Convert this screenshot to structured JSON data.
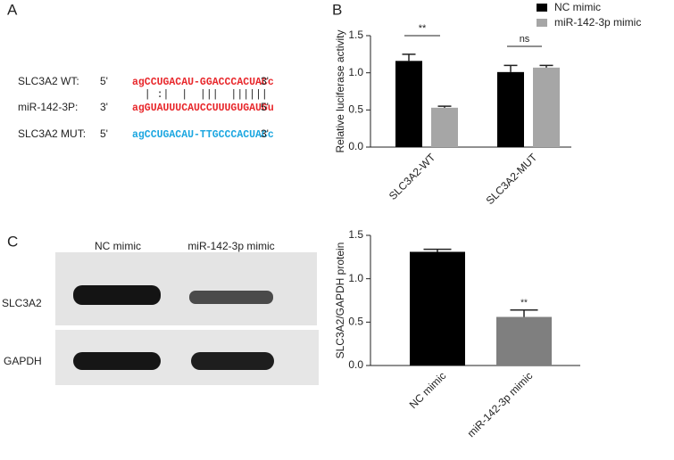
{
  "panel_labels": [
    "A",
    "B",
    "C"
  ],
  "sequence_panel": {
    "rows": [
      {
        "label": "SLC3A2 WT:",
        "left": "5'",
        "sequence": "agCCUGACAU-GGACCCACUACc",
        "right": "3'",
        "color": "#e8262a"
      },
      {
        "label": "miR-142-3P:",
        "left": "3'",
        "sequence": "agGUAUUUCAUCCUUUGUGAUGu",
        "right": "5'",
        "color": "#e8262a"
      },
      {
        "label": "SLC3A2 MUT:",
        "left": "5'",
        "sequence": "agCCUGACAU-TTGCCCACUACc",
        "right": "3'",
        "color": "#1aa6e0"
      }
    ],
    "pairing": "  | :|  |  |||  ||||||"
  },
  "blot": {
    "lanes": [
      "NC mimic",
      "miR-142-3p mimic"
    ],
    "proteins": [
      "SLC3A2",
      "GAPDH"
    ]
  },
  "chart_data": [
    {
      "type": "bar",
      "y_label": "Relative luciferase activity",
      "categories": [
        "SLC3A2-WT",
        "SLC3A2-MUT"
      ],
      "series": [
        {
          "name": "NC mimic",
          "color": "#000000",
          "values": [
            1.16,
            1.01
          ],
          "errors": [
            0.09,
            0.09
          ]
        },
        {
          "name": "miR-142-3p mimic",
          "color": "#a6a6a6",
          "values": [
            0.53,
            1.07
          ],
          "errors": [
            0.02,
            0.03
          ]
        }
      ],
      "annotations": [
        "**",
        "ns"
      ],
      "ylim": [
        0,
        1.5
      ],
      "yticks": [
        {
          "value": 0,
          "label": "0.0"
        },
        0.5,
        {
          "value": 1,
          "label": "1.0"
        },
        1.5
      ],
      "legend": "top-right"
    },
    {
      "type": "bar",
      "y_label": "SLC3A2/GAPDH protein",
      "categories": [
        "NC mimic",
        "miR-142-3p mimic"
      ],
      "values": [
        1.31,
        0.56
      ],
      "errors": [
        0.03,
        0.08
      ],
      "colors": [
        "#000000",
        "#7f7f7f"
      ],
      "annotations": [
        "**"
      ],
      "ylim": [
        0,
        1.5
      ],
      "yticks": [
        {
          "value": 0,
          "label": "0.0"
        },
        0.5,
        {
          "value": 1,
          "label": "1.0"
        },
        1.5
      ]
    }
  ]
}
